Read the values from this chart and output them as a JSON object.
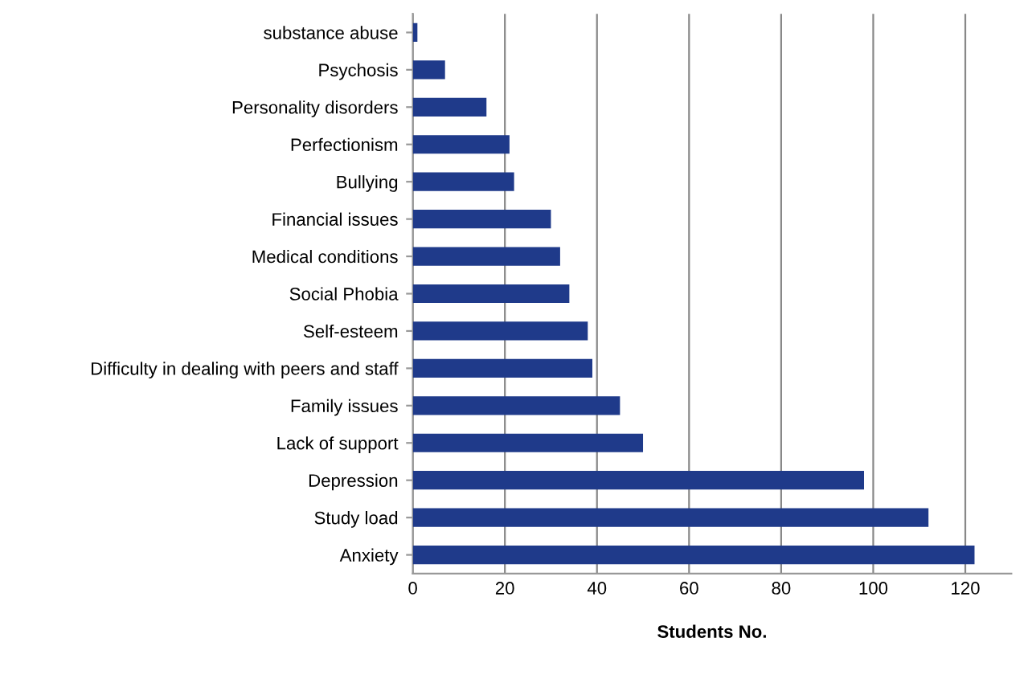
{
  "chart_data": {
    "type": "bar",
    "orientation": "horizontal",
    "xlabel": "Students No.",
    "categories": [
      "substance abuse",
      "Psychosis",
      "Personality disorders",
      "Perfectionism",
      "Bullying",
      "Financial issues",
      "Medical conditions",
      "Social Phobia",
      "Self-esteem",
      "Difficulty in dealing with peers and staff",
      "Family issues",
      "Lack of support",
      "Depression",
      "Study load",
      "Anxiety"
    ],
    "values": [
      1,
      7,
      16,
      21,
      22,
      30,
      32,
      34,
      38,
      39,
      45,
      50,
      98,
      112,
      122
    ],
    "color": "#1f3a8a",
    "xlim": [
      0,
      130
    ],
    "xticks": [
      0,
      20,
      40,
      60,
      80,
      100,
      120
    ],
    "grid": "x"
  }
}
